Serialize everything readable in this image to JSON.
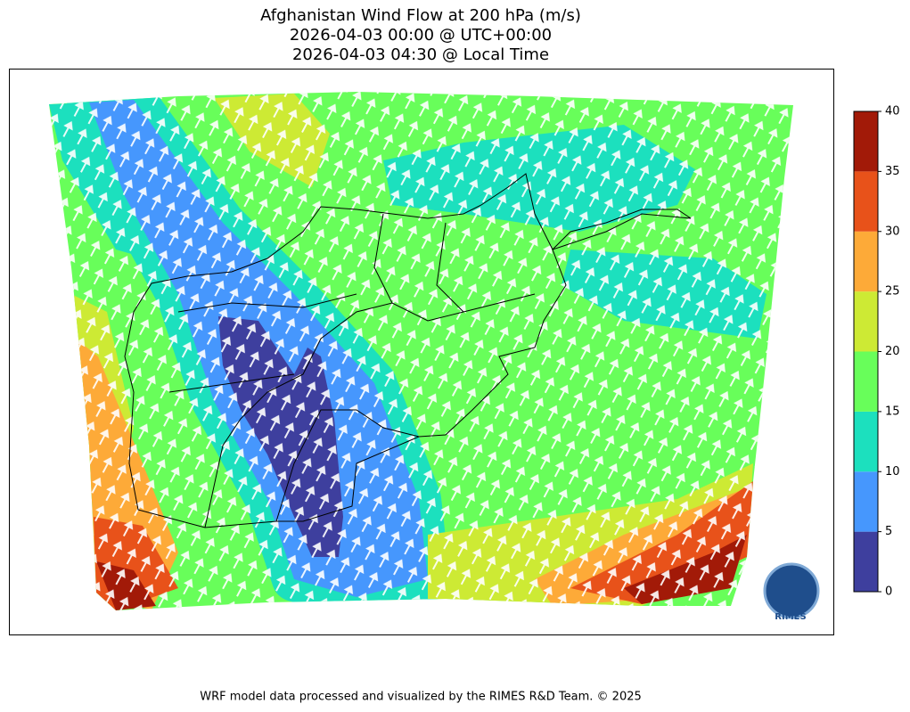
{
  "title": [
    "Afghanistan Wind Flow at 200 hPa (m/s)",
    "2026-04-03 00:00 @ UTC+00:00",
    "2026-04-03 04:30 @ Local Time"
  ],
  "colorbar": {
    "lim": [
      0,
      40
    ],
    "ticks": [
      0,
      5,
      10,
      15,
      20,
      25,
      30,
      35,
      40
    ],
    "colors": [
      "#3e3f9e",
      "#4697fd",
      "#1ce0be",
      "#68fe5a",
      "#cdea34",
      "#fdaa38",
      "#e8521a",
      "#a21a08"
    ]
  },
  "logo": "RIMES",
  "footer": "WRF model data processed and visualized by the RIMES R&D Team. © 2025"
}
